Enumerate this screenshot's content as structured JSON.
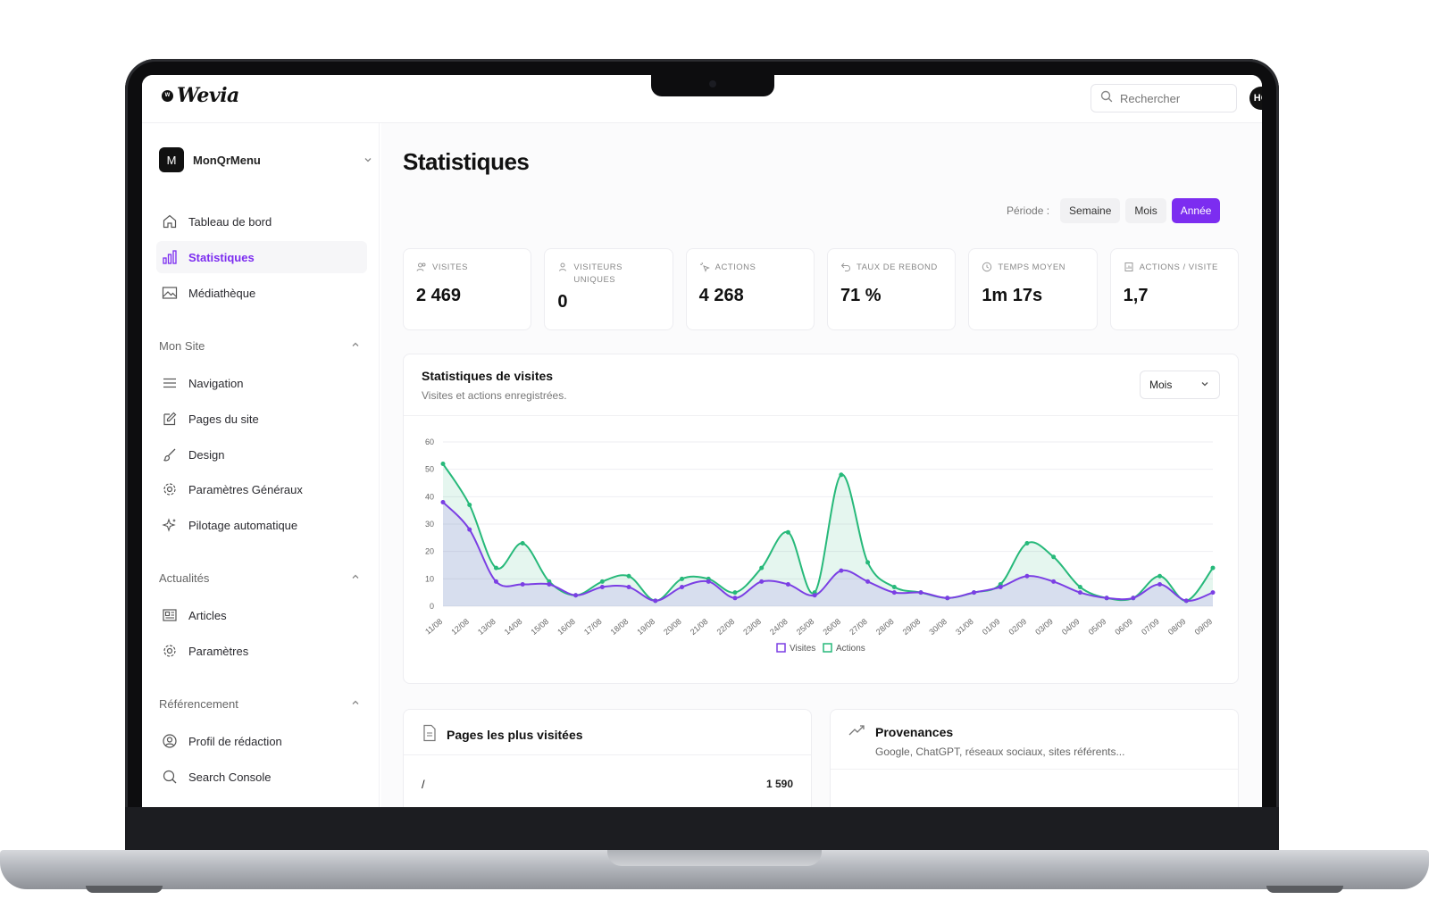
{
  "app": {
    "logo": "Wevia",
    "logo_mark": "W"
  },
  "search": {
    "placeholder": "Rechercher"
  },
  "user": {
    "initials": "HG"
  },
  "site": {
    "badge": "M",
    "name": "MonQrMenu"
  },
  "sidebar": {
    "items": [
      {
        "label": "Tableau de bord",
        "icon": "home-icon"
      },
      {
        "label": "Statistiques",
        "icon": "bar-chart-icon",
        "active": true
      },
      {
        "label": "Médiathèque",
        "icon": "image-icon"
      }
    ],
    "sections": [
      {
        "title": "Mon Site",
        "items": [
          {
            "label": "Navigation",
            "icon": "menu-icon"
          },
          {
            "label": "Pages du site",
            "icon": "edit-icon"
          },
          {
            "label": "Design",
            "icon": "brush-icon"
          },
          {
            "label": "Paramètres Généraux",
            "icon": "gear-icon"
          },
          {
            "label": "Pilotage automatique",
            "icon": "sparkles-icon"
          }
        ]
      },
      {
        "title": "Actualités",
        "items": [
          {
            "label": "Articles",
            "icon": "newspaper-icon"
          },
          {
            "label": "Paramètres",
            "icon": "gear-icon"
          }
        ]
      },
      {
        "title": "Référencement",
        "items": [
          {
            "label": "Profil de rédaction",
            "icon": "user-circle-icon"
          },
          {
            "label": "Search Console",
            "icon": "search-icon"
          }
        ]
      }
    ]
  },
  "page": {
    "title": "Statistiques"
  },
  "period": {
    "label": "Période :",
    "options": [
      "Semaine",
      "Mois",
      "Année"
    ],
    "selected": "Année"
  },
  "kpis": [
    {
      "label": "Visites",
      "value": "2 469",
      "icon": "users-icon"
    },
    {
      "label": "Visiteurs uniques",
      "value": "0",
      "icon": "user-icon"
    },
    {
      "label": "Actions",
      "value": "4 268",
      "icon": "click-icon"
    },
    {
      "label": "Taux de rebond",
      "value": "71 %",
      "icon": "undo-icon"
    },
    {
      "label": "Temps moyen",
      "value": "1m 17s",
      "icon": "clock-icon"
    },
    {
      "label": "Actions / visite",
      "value": "1,7",
      "icon": "document-icon"
    }
  ],
  "visits_card": {
    "title": "Statistiques de visites",
    "subtitle": "Visites et actions enregistrées.",
    "select_value": "Mois"
  },
  "colors": {
    "accent": "#7c2df0",
    "visits": "#7b3fe4",
    "actions": "#27b97a"
  },
  "chart_data": {
    "type": "area",
    "categories": [
      "11/08",
      "12/08",
      "13/08",
      "14/08",
      "15/08",
      "16/08",
      "17/08",
      "18/08",
      "19/08",
      "20/08",
      "21/08",
      "22/08",
      "23/08",
      "24/08",
      "25/08",
      "26/08",
      "27/08",
      "28/08",
      "29/08",
      "30/08",
      "31/08",
      "01/09",
      "02/09",
      "03/09",
      "04/09",
      "05/09",
      "06/09",
      "07/09",
      "08/09",
      "09/09"
    ],
    "series": [
      {
        "name": "Visites",
        "values": [
          38,
          28,
          9,
          8,
          8,
          4,
          7,
          7,
          2,
          7,
          9,
          3,
          9,
          8,
          4,
          13,
          9,
          5,
          5,
          3,
          5,
          7,
          11,
          9,
          5,
          3,
          3,
          8,
          2,
          5
        ]
      },
      {
        "name": "Actions",
        "values": [
          52,
          37,
          14,
          23,
          9,
          4,
          9,
          11,
          2,
          10,
          10,
          5,
          14,
          27,
          5,
          48,
          16,
          7,
          5,
          3,
          5,
          8,
          23,
          18,
          7,
          3,
          3,
          11,
          2,
          14
        ]
      }
    ],
    "ylim": [
      0,
      60
    ],
    "yticks": [
      0,
      10,
      20,
      30,
      40,
      50,
      60
    ],
    "grid": true,
    "legend": "bottom-center"
  },
  "pages_card": {
    "title": "Pages les plus visitées",
    "rows": [
      {
        "path": "/",
        "count": "1 590"
      }
    ]
  },
  "provenance_card": {
    "title": "Provenances",
    "subtitle": "Google, ChatGPT, réseaux sociaux, sites référents..."
  }
}
